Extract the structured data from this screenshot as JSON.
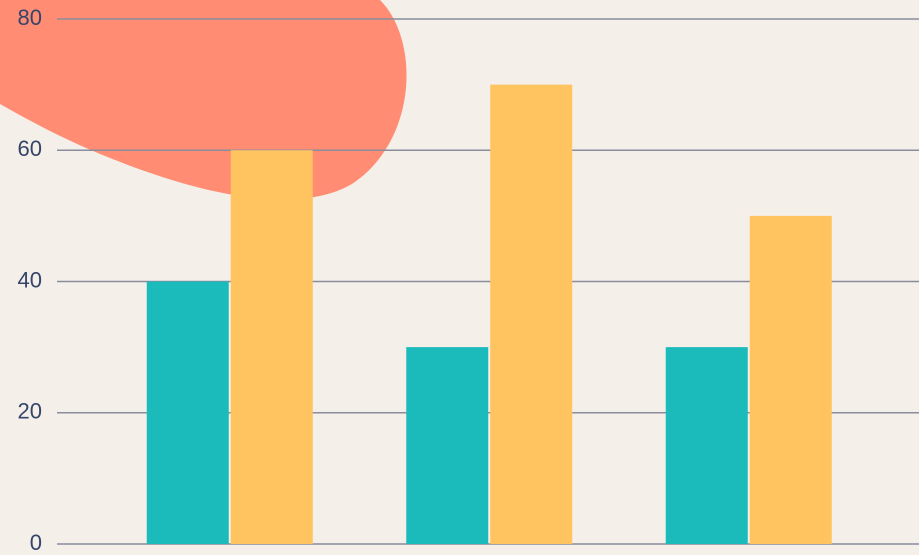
{
  "chart_data": {
    "type": "bar",
    "categories": [
      null,
      null,
      null
    ],
    "series": [
      {
        "color": "#1bbbbb",
        "values": [
          40,
          30,
          30
        ]
      },
      {
        "color": "#ffc45f",
        "values": [
          60,
          70,
          50
        ]
      }
    ],
    "ylim": [
      0,
      80
    ],
    "yticks": [
      0,
      20,
      40,
      60,
      80
    ],
    "grid": true
  }
}
